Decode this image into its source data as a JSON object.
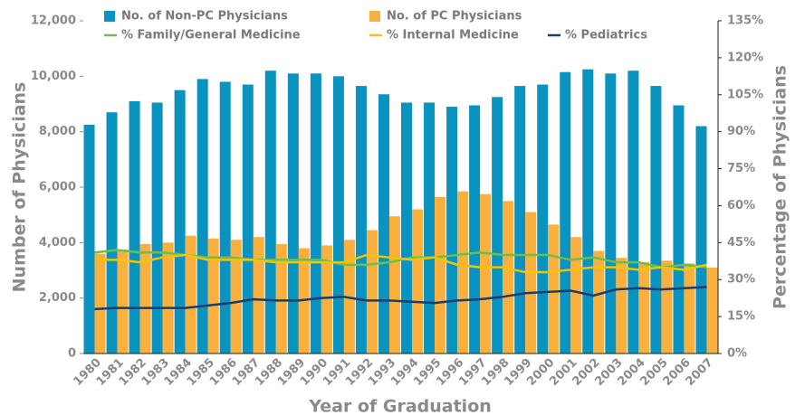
{
  "chart_data": {
    "type": "bar-line",
    "x_label": "Year of Graduation",
    "y_label": "Number of Physicians",
    "y2_label": "Percentage of Physicians",
    "categories": [
      "1980",
      "1981",
      "1982",
      "1983",
      "1984",
      "1985",
      "1986",
      "1987",
      "1988",
      "1989",
      "1990",
      "1991",
      "1992",
      "1993",
      "1994",
      "1995",
      "1996",
      "1997",
      "1998",
      "1999",
      "2000",
      "2001",
      "2002",
      "2003",
      "2004",
      "2005",
      "2006",
      "2007"
    ],
    "series": [
      {
        "name": "No. of Non-PC Physicians",
        "type": "bar",
        "color": "#0b93bf",
        "values": [
          8250,
          8700,
          9100,
          9050,
          9500,
          9900,
          9800,
          9700,
          10200,
          10100,
          10100,
          10000,
          9650,
          9350,
          9050,
          9050,
          8900,
          8950,
          9250,
          9650,
          9700,
          10150,
          10250,
          10100,
          10200,
          9650,
          8950,
          8200
        ]
      },
      {
        "name": "No. of PC Physicians",
        "type": "bar",
        "color": "#f9b03f",
        "values": [
          3600,
          3750,
          3950,
          4000,
          4250,
          4150,
          4100,
          4200,
          3950,
          3800,
          3900,
          4100,
          4450,
          4950,
          5200,
          5650,
          5850,
          5750,
          5500,
          5100,
          4650,
          4200,
          3700,
          3450,
          3300,
          3350,
          3250,
          3100
        ]
      },
      {
        "name": "% Family/General Medicine",
        "type": "line",
        "axis": "y2",
        "color": "#6cbf4d",
        "values": [
          41,
          42,
          41,
          41,
          40,
          39,
          39,
          38,
          38,
          38,
          38,
          36,
          36,
          37,
          39,
          39,
          40,
          41,
          40,
          40,
          40,
          38,
          39,
          37,
          37,
          35,
          36,
          35
        ]
      },
      {
        "name": "% Internal Medicine",
        "type": "line",
        "axis": "y2",
        "color": "#f5c400",
        "values": [
          38,
          38,
          37,
          39,
          40,
          38,
          38,
          38,
          37,
          37,
          37,
          37,
          40,
          39,
          38,
          39,
          36,
          35,
          35,
          33,
          33,
          34,
          35,
          35,
          34,
          35,
          34,
          36
        ]
      },
      {
        "name": "% Pediatrics",
        "type": "line",
        "axis": "y2",
        "color": "#1d3c6e",
        "values": [
          18,
          18.5,
          18.5,
          18.5,
          18.5,
          19.5,
          20.5,
          22,
          21.5,
          21.5,
          22.5,
          23,
          21.5,
          21.5,
          21,
          20.5,
          21.5,
          22,
          23,
          24.5,
          25,
          25.5,
          23.5,
          26,
          26.5,
          26,
          26.5,
          27
        ]
      }
    ],
    "ylim": [
      0,
      12000
    ],
    "yticks": [
      0,
      {
        "value": 2000,
        "label": "2,000"
      },
      {
        "value": 4000,
        "label": "4,000"
      },
      {
        "value": 6000,
        "label": "6,000"
      },
      {
        "value": 8000,
        "label": "8,000"
      },
      {
        "value": 10000,
        "label": "10,000"
      },
      {
        "value": 12000,
        "label": "12,000"
      }
    ],
    "y2lim": [
      0,
      135
    ],
    "y2ticks": [
      {
        "value": 0,
        "label": "0%"
      },
      {
        "value": 15,
        "label": "15%"
      },
      {
        "value": 30,
        "label": "30%"
      },
      {
        "value": 45,
        "label": "45%"
      },
      {
        "value": 60,
        "label": "60%"
      },
      {
        "value": 75,
        "label": "75%"
      },
      {
        "value": 90,
        "label": "90%"
      },
      {
        "value": 105,
        "label": "105%"
      },
      {
        "value": 120,
        "label": "120%"
      },
      {
        "value": 135,
        "label": "135%"
      }
    ]
  }
}
